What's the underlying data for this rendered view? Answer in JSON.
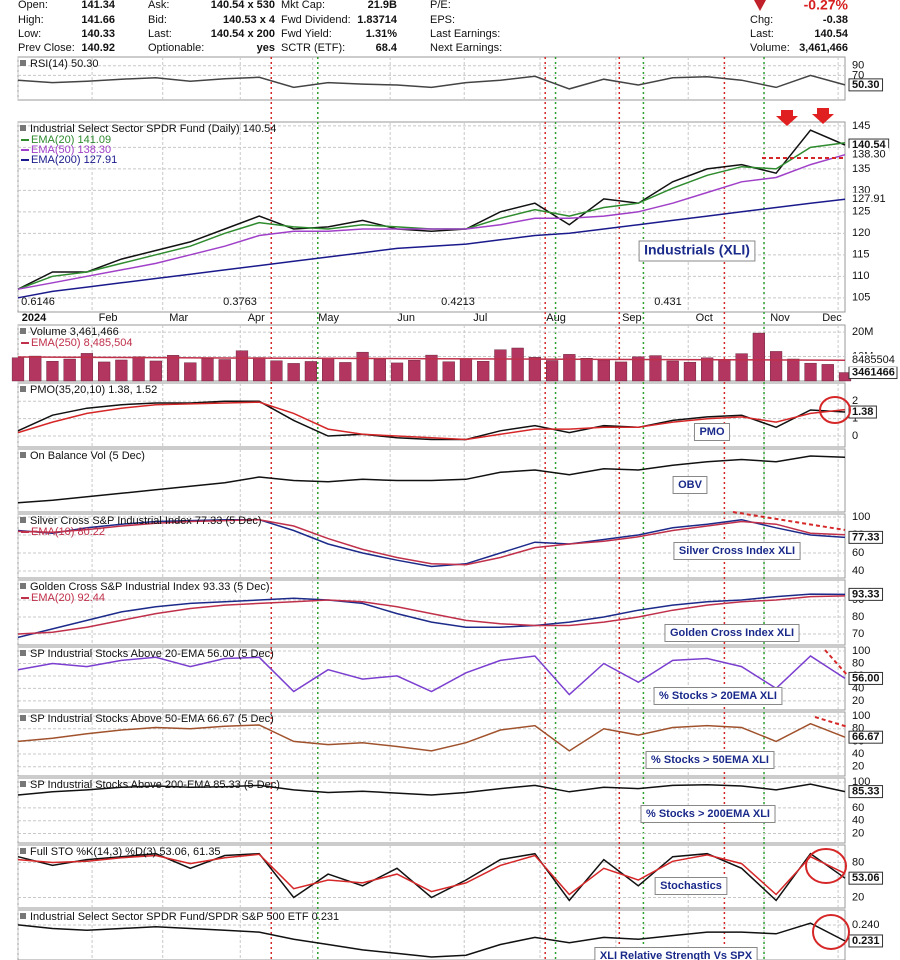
{
  "quote": {
    "columns": [
      [
        {
          "label": "Open:",
          "value": "141.34"
        },
        {
          "label": "High:",
          "value": "141.66"
        },
        {
          "label": "Low:",
          "value": "140.33"
        },
        {
          "label": "Prev Close:",
          "value": "140.92"
        }
      ],
      [
        {
          "label": "Ask:",
          "value": "140.54 x 530"
        },
        {
          "label": "Bid:",
          "value": "140.53 x 4"
        },
        {
          "label": "Last:",
          "value": "140.54 x 200"
        },
        {
          "label": "Optionable:",
          "value": "yes"
        }
      ],
      [
        {
          "label": "Mkt Cap:",
          "value": "21.9B"
        },
        {
          "label": "Fwd Dividend:",
          "value": "1.83714"
        },
        {
          "label": "Fwd Yield:",
          "value": "1.31%"
        },
        {
          "label": "SCTR (ETF):",
          "value": "68.4"
        }
      ],
      [
        {
          "label": "P/E:"
        },
        {
          "label": "EPS:"
        },
        {
          "label": "Last Earnings:"
        },
        {
          "label": "Next Earnings:"
        }
      ],
      [
        {
          "value": "-0.27%"
        },
        {
          "label": "Chg:",
          "value": "-0.38"
        },
        {
          "label": "Last:",
          "value": "140.54"
        },
        {
          "label": "Volume:",
          "value": "3,461,466"
        }
      ]
    ]
  },
  "x_axis": {
    "xlim": [
      0,
      48
    ],
    "xticks": [
      {
        "value": 0,
        "label": "2024"
      },
      {
        "value": 4.3,
        "label": "Feb"
      },
      {
        "value": 8.4,
        "label": "Mar"
      },
      {
        "value": 12.9,
        "label": "Apr"
      },
      {
        "value": 17.1,
        "label": "May"
      },
      {
        "value": 21.6,
        "label": "Jun"
      },
      {
        "value": 25.9,
        "label": "Jul"
      },
      {
        "value": 30.3,
        "label": "Aug"
      },
      {
        "value": 34.7,
        "label": "Sep"
      },
      {
        "value": 38.9,
        "label": "Oct"
      },
      {
        "value": 43.3,
        "label": "Nov"
      },
      {
        "value": 47.6,
        "label": "Dec"
      }
    ],
    "x": [
      0,
      2,
      4,
      6,
      8,
      10,
      12,
      14,
      16,
      18,
      20,
      22,
      24,
      26,
      28,
      30,
      32,
      34,
      36,
      38,
      40,
      42,
      44,
      46,
      48
    ]
  },
  "signal_lines": [
    {
      "color": "#d62728",
      "x": [
        14.7,
        30.6,
        34.9,
        41.0
      ]
    },
    {
      "color": "#2ca02c",
      "x": [
        17.4,
        31.2,
        36.3,
        43.3
      ]
    }
  ],
  "chart_data": [
    {
      "type": "line",
      "title": "RSI(14) 50.30",
      "ylim": [
        19,
        108
      ],
      "yticks": [
        70,
        90
      ],
      "series": [
        {
          "color": "#444444",
          "last_label": "50.30",
          "values": [
            60,
            55,
            58,
            62,
            65,
            58,
            63,
            66,
            45,
            55,
            52,
            50,
            45,
            55,
            60,
            68,
            42,
            62,
            50,
            65,
            67,
            60,
            45,
            70,
            50.3
          ]
        }
      ]
    },
    {
      "type": "line",
      "title": "Industrial Select Sector SPDR Fund (Daily) 140.54",
      "annotation": "Industrials (XLI)",
      "ylim": [
        101.7,
        145.9
      ],
      "yticks": [
        105,
        110,
        115,
        120,
        125,
        130,
        135,
        140,
        145
      ],
      "markers": [
        0.6146,
        0.3763,
        0.4213,
        0.431
      ],
      "series": [
        {
          "color": "#111111",
          "last_label": "140.54",
          "values": [
            107,
            111,
            111,
            114,
            116,
            118,
            121,
            124,
            121,
            121.5,
            123,
            121,
            120.5,
            121,
            125,
            127,
            122,
            128,
            127,
            132,
            135,
            136,
            134,
            144,
            140.54
          ]
        },
        {
          "name": "EMA(20) 141.09",
          "color": "#2e8b2e",
          "values": [
            107,
            110,
            111,
            113,
            115,
            117,
            120,
            122.5,
            121.5,
            121,
            122,
            121.5,
            121,
            121,
            123.5,
            125.5,
            124,
            126,
            127,
            130.5,
            133.5,
            135.5,
            135,
            140,
            141.09
          ]
        },
        {
          "name": "EMA(50) 138.30",
          "color": "#a040c8",
          "last_label": "138.30",
          "values": [
            107,
            108.5,
            110,
            111.5,
            113,
            115,
            117,
            119.5,
            120.5,
            120.5,
            121,
            121,
            121,
            121,
            122,
            123.5,
            123.5,
            124,
            125,
            127,
            129.5,
            132,
            133,
            136,
            138.3
          ]
        },
        {
          "name": "EMA(200) 127.91",
          "color": "#1a1a8c",
          "last_label": "127.91",
          "values": [
            105,
            106.5,
            107.5,
            108.5,
            109.5,
            110.5,
            111.5,
            112.5,
            113.5,
            114.5,
            115.5,
            116.5,
            117,
            117.5,
            118.5,
            119.5,
            120,
            121,
            122,
            123,
            124,
            125,
            126,
            127,
            127.91
          ]
        }
      ]
    },
    {
      "type": "bar",
      "title": "Volume 3,461,466",
      "ylim": [
        0,
        22900000
      ],
      "yticks": [
        {
          "value": 10000000,
          "label": "10M"
        },
        {
          "value": 20000000,
          "label": "20M"
        }
      ],
      "series": [
        {
          "color": "#b2365f",
          "last_label": "3461466",
          "x": [
            0,
            1,
            2,
            3,
            4,
            5,
            6,
            7,
            8,
            9,
            10,
            11,
            12,
            13,
            14,
            15,
            16,
            17,
            18,
            19,
            20,
            21,
            22,
            23,
            24,
            25,
            26,
            27,
            28,
            29,
            30,
            31,
            32,
            33,
            34,
            35,
            36,
            37,
            38,
            39,
            40,
            41,
            42,
            43,
            44,
            45,
            46,
            47,
            48
          ],
          "values": [
            9500000,
            10200000,
            8100000,
            9000000,
            11300000,
            7800000,
            8600000,
            9900000,
            8200000,
            10500000,
            7500000,
            9100000,
            8800000,
            12400000,
            9600000,
            8300000,
            7200000,
            8000000,
            9400000,
            7600000,
            11800000,
            8900000,
            7400000,
            8500000,
            10600000,
            7900000,
            9200000,
            8100000,
            12800000,
            13500000,
            9700000,
            8400000,
            10900000,
            9300000,
            8600000,
            7800000,
            9900000,
            10400000,
            8200000,
            7700000,
            9500000,
            8800000,
            11200000,
            19600000,
            12100000,
            9000000,
            7300000,
            6800000,
            3461466
          ]
        },
        {
          "type": "line",
          "name": "EMA(250) 8,485,504",
          "color": "#c0304a",
          "last_label": "8485504",
          "x": [
            0,
            12,
            24,
            36,
            48
          ],
          "values": [
            9800000,
            9400000,
            9100000,
            8800000,
            8485504
          ]
        }
      ]
    },
    {
      "type": "line",
      "title": "PMO(35,20,10) 1.38, 1.52",
      "annotation": "PMO",
      "ylim": [
        -0.63,
        3.05
      ],
      "yticks": [
        0,
        1,
        2
      ],
      "series": [
        {
          "color": "#111111",
          "last_label": "1.38",
          "values": [
            0.3,
            1.2,
            1.6,
            1.8,
            1.9,
            1.9,
            2.0,
            2.0,
            0.9,
            0.0,
            0.1,
            -0.1,
            -0.2,
            -0.2,
            0.3,
            0.6,
            0.2,
            0.6,
            0.5,
            0.9,
            1.1,
            1.2,
            0.5,
            1.5,
            1.38
          ]
        },
        {
          "color": "#d62728",
          "values": [
            0.2,
            0.8,
            1.3,
            1.6,
            1.8,
            1.85,
            1.9,
            1.95,
            1.3,
            0.4,
            0.1,
            0.0,
            -0.1,
            -0.2,
            0.1,
            0.4,
            0.4,
            0.5,
            0.5,
            0.8,
            1.0,
            1.1,
            0.8,
            1.3,
            1.52
          ]
        }
      ]
    },
    {
      "type": "line",
      "title": "On Balance Vol (5 Dec)",
      "annotation": "OBV",
      "ylim": [
        -40,
        230
      ],
      "series": [
        {
          "color": "#111111",
          "values": [
            0,
            10,
            25,
            40,
            55,
            70,
            85,
            110,
            95,
            90,
            100,
            95,
            95,
            100,
            130,
            140,
            120,
            145,
            140,
            160,
            175,
            185,
            175,
            200,
            195
          ]
        }
      ]
    },
    {
      "type": "line",
      "title": "Silver Cross S&P Industrial Index 77.33 (5 Dec)",
      "annotation": "Silver Cross Index XLI",
      "ylim": [
        32.2,
        103.3
      ],
      "yticks": [
        40,
        60,
        80,
        100
      ],
      "series": [
        {
          "color": "#1c2a8a",
          "last_label": "77.33",
          "values": [
            85,
            82,
            88,
            92,
            95,
            96,
            97,
            97,
            85,
            70,
            60,
            52,
            45,
            48,
            60,
            72,
            70,
            75,
            80,
            88,
            92,
            97,
            88,
            80,
            77.33
          ]
        },
        {
          "name": "EMA(10) 80.22",
          "color": "#c0304a",
          "values": [
            84,
            83,
            86,
            90,
            93,
            95,
            96,
            97,
            90,
            76,
            64,
            55,
            48,
            47,
            55,
            66,
            70,
            73,
            78,
            85,
            90,
            95,
            92,
            82,
            80.22
          ]
        }
      ]
    },
    {
      "type": "line",
      "title": "Golden Cross S&P Industrial Index 93.33 (5 Dec)",
      "annotation": "Golden Cross Index XLI",
      "ylim": [
        63.5,
        101.8
      ],
      "yticks": [
        70,
        80,
        90
      ],
      "series": [
        {
          "color": "#1c2a8a",
          "last_label": "93.33",
          "values": [
            68,
            73,
            78,
            83,
            86,
            88,
            89,
            90,
            91,
            90,
            88,
            82,
            77,
            74,
            74,
            75,
            77,
            80,
            84,
            87,
            89,
            90,
            92,
            93.5,
            93.33
          ]
        },
        {
          "name": "EMA(20) 92.44",
          "color": "#c0304a",
          "values": [
            70,
            71,
            74,
            78,
            82,
            85,
            87,
            88,
            89,
            90,
            89,
            86,
            82,
            78,
            76,
            75,
            75,
            77,
            80,
            84,
            87,
            89,
            90,
            92,
            92.44
          ]
        }
      ]
    },
    {
      "type": "line",
      "title": "SP Industrial Stocks Above 20-EMA 56.00 (5 Dec)",
      "annotation": "% Stocks > 20EMA XLI",
      "ylim": [
        5.3,
        106.5
      ],
      "yticks": [
        20,
        40,
        60,
        80,
        100
      ],
      "series": [
        {
          "color": "#7b3fd0",
          "last_label": "56.00",
          "values": [
            70,
            80,
            75,
            85,
            90,
            75,
            88,
            90,
            35,
            70,
            55,
            60,
            35,
            65,
            85,
            92,
            30,
            80,
            50,
            85,
            88,
            75,
            40,
            92,
            56
          ]
        }
      ]
    },
    {
      "type": "line",
      "title": "SP Industrial Stocks Above 50-EMA 66.67 (5 Dec)",
      "annotation": "% Stocks > 50EMA XLI",
      "ylim": [
        5.3,
        106.5
      ],
      "yticks": [
        20,
        40,
        60,
        80,
        100
      ],
      "series": [
        {
          "color": "#a0522d",
          "last_label": "66.67",
          "values": [
            60,
            65,
            72,
            78,
            82,
            80,
            84,
            86,
            60,
            55,
            58,
            52,
            45,
            58,
            78,
            85,
            45,
            80,
            70,
            82,
            85,
            82,
            60,
            88,
            66.67
          ]
        }
      ]
    },
    {
      "type": "line",
      "title": "SP Industrial Stocks Above 200-EMA 85.33 (5 Dec)",
      "annotation": "% Stocks > 200EMA XLI",
      "ylim": [
        5.3,
        106.5
      ],
      "yticks": [
        20,
        40,
        60,
        100
      ],
      "series": [
        {
          "color": "#111111",
          "last_label": "85.33",
          "values": [
            80,
            85,
            88,
            92,
            94,
            92,
            93,
            95,
            88,
            84,
            86,
            83,
            80,
            84,
            90,
            95,
            85,
            92,
            90,
            95,
            96,
            94,
            88,
            97,
            85.33
          ]
        }
      ]
    },
    {
      "type": "line",
      "title": "Full STO %K(14,3) %D(3) 53.06, 61.35",
      "annotation": "Stochastics",
      "ylim": [
        1.9,
        110
      ],
      "yticks": [
        20,
        80
      ],
      "series": [
        {
          "color": "#111111",
          "last_label": "53.06",
          "values": [
            90,
            75,
            85,
            90,
            95,
            70,
            92,
            95,
            20,
            60,
            40,
            70,
            20,
            50,
            85,
            95,
            15,
            85,
            40,
            90,
            95,
            70,
            15,
            95,
            53.06
          ]
        },
        {
          "color": "#d62728",
          "values": [
            85,
            80,
            82,
            88,
            92,
            78,
            88,
            94,
            35,
            50,
            45,
            60,
            30,
            45,
            75,
            92,
            25,
            70,
            50,
            82,
            93,
            78,
            25,
            90,
            61.35
          ]
        }
      ]
    },
    {
      "type": "line",
      "title": "Industrial Select Sector SPDR Fund/SPDR S&P 500 ETF 0.231",
      "annotation": "XLI Relative Strength Vs SPX",
      "ylim": [
        0.2203,
        0.2484
      ],
      "yticks": [
        {
          "value": 0.24,
          "label": "0.240"
        }
      ],
      "series": [
        {
          "color": "#111111",
          "last_label": "0.231",
          "values": [
            0.24,
            0.238,
            0.237,
            0.238,
            0.239,
            0.238,
            0.237,
            0.236,
            0.232,
            0.229,
            0.226,
            0.224,
            0.222,
            0.223,
            0.229,
            0.233,
            0.23,
            0.233,
            0.232,
            0.234,
            0.236,
            0.236,
            0.235,
            0.241,
            0.231
          ]
        }
      ]
    }
  ]
}
